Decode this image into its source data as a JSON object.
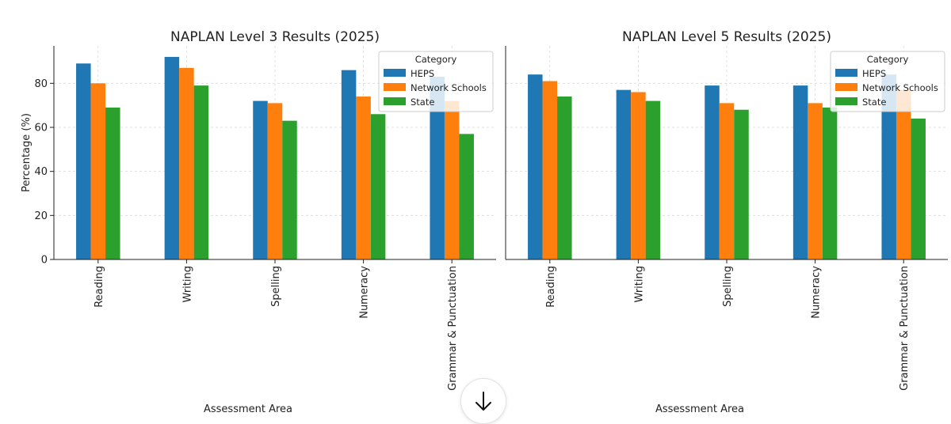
{
  "chart_data": [
    {
      "type": "bar",
      "title": "NAPLAN Level 3 Results (2025)",
      "xlabel": "Assessment Area",
      "ylabel": "Percentage (%)",
      "categories": [
        "Reading",
        "Writing",
        "Spelling",
        "Numeracy",
        "Grammar & Punctuation"
      ],
      "series": [
        {
          "name": "HEPS",
          "values": [
            89,
            92,
            72,
            86,
            83
          ],
          "color": "#1f77b4"
        },
        {
          "name": "Network Schools",
          "values": [
            80,
            87,
            71,
            74,
            72
          ],
          "color": "#ff7f0e"
        },
        {
          "name": "State",
          "values": [
            69,
            79,
            63,
            66,
            57
          ],
          "color": "#2ca02c"
        }
      ],
      "ylim": [
        0,
        97
      ],
      "yticks": [
        0,
        20,
        40,
        60,
        80
      ],
      "grid": true,
      "legend": {
        "title": "Category",
        "position": "top-right"
      }
    },
    {
      "type": "bar",
      "title": "NAPLAN Level 5 Results (2025)",
      "xlabel": "Assessment Area",
      "ylabel": "",
      "categories": [
        "Reading",
        "Writing",
        "Spelling",
        "Numeracy",
        "Grammar & Punctuation"
      ],
      "series": [
        {
          "name": "HEPS",
          "values": [
            84,
            77,
            79,
            79,
            84
          ],
          "color": "#1f77b4"
        },
        {
          "name": "Network Schools",
          "values": [
            81,
            76,
            71,
            71,
            77
          ],
          "color": "#ff7f0e"
        },
        {
          "name": "State",
          "values": [
            74,
            72,
            68,
            69,
            64
          ],
          "color": "#2ca02c"
        }
      ],
      "ylim": [
        0,
        97
      ],
      "yticks": [],
      "grid": true,
      "legend": {
        "title": "Category",
        "position": "top-right"
      }
    }
  ],
  "scroll_button": {
    "icon": "arrow-down-icon"
  }
}
